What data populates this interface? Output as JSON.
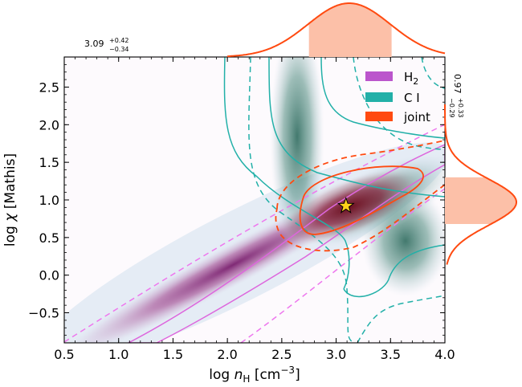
{
  "chart_data": {
    "type": "contour",
    "xlabel_main": "log",
    "xlabel_var": "n",
    "xlabel_sub": "H",
    "xlabel_unit": "[cm",
    "xlabel_exp": "−3",
    "xlabel_close": "]",
    "ylabel_main": "log",
    "ylabel_var": "χ",
    "ylabel_unit": "[Mathis]",
    "xlim": [
      0.5,
      4.0
    ],
    "ylim": [
      -0.9,
      2.9
    ],
    "xticks": [
      0.5,
      1.0,
      1.5,
      2.0,
      2.5,
      3.0,
      3.5,
      4.0
    ],
    "xtick_labels": [
      "0.5",
      "1.0",
      "1.5",
      "2.0",
      "2.5",
      "3.0",
      "3.5",
      "4.0"
    ],
    "yticks": [
      -0.5,
      0.0,
      0.5,
      1.0,
      1.5,
      2.0,
      2.5
    ],
    "ytick_labels": [
      "−0.5",
      "0.0",
      "0.5",
      "1.0",
      "1.5",
      "2.0",
      "2.5"
    ],
    "legend": [
      {
        "label": "H",
        "sub": "2",
        "color": "#bb55cc"
      },
      {
        "label": "C I",
        "sub": "",
        "color": "#22b0a8"
      },
      {
        "label": "joint",
        "sub": "",
        "color": "#ff4a10"
      }
    ],
    "best_fit": {
      "x": 3.09,
      "y": 0.92,
      "marker": "star"
    },
    "x_annotation": {
      "value": "3.09",
      "plus": "+0.42",
      "minus": "−0.34"
    },
    "y_annotation": {
      "value": "0.97",
      "plus": "+0.33",
      "minus": "−0.29"
    },
    "x_marginal": {
      "mean": 3.12,
      "sigma": 0.38,
      "shade_range": [
        2.75,
        3.51
      ]
    },
    "y_marginal": {
      "mean": 0.97,
      "sigma": 0.31,
      "shade_range": [
        0.68,
        1.3
      ]
    },
    "colors": {
      "h2": "#bb55cc",
      "ci": "#22b0a8",
      "joint": "#ff4a10",
      "shade": "#fcc0a8",
      "h2_fill": "#7a1f6e",
      "ci_fill": "#2e6b5e",
      "joint_fill": "#7a0a1e",
      "star": "#ffd21a"
    }
  }
}
